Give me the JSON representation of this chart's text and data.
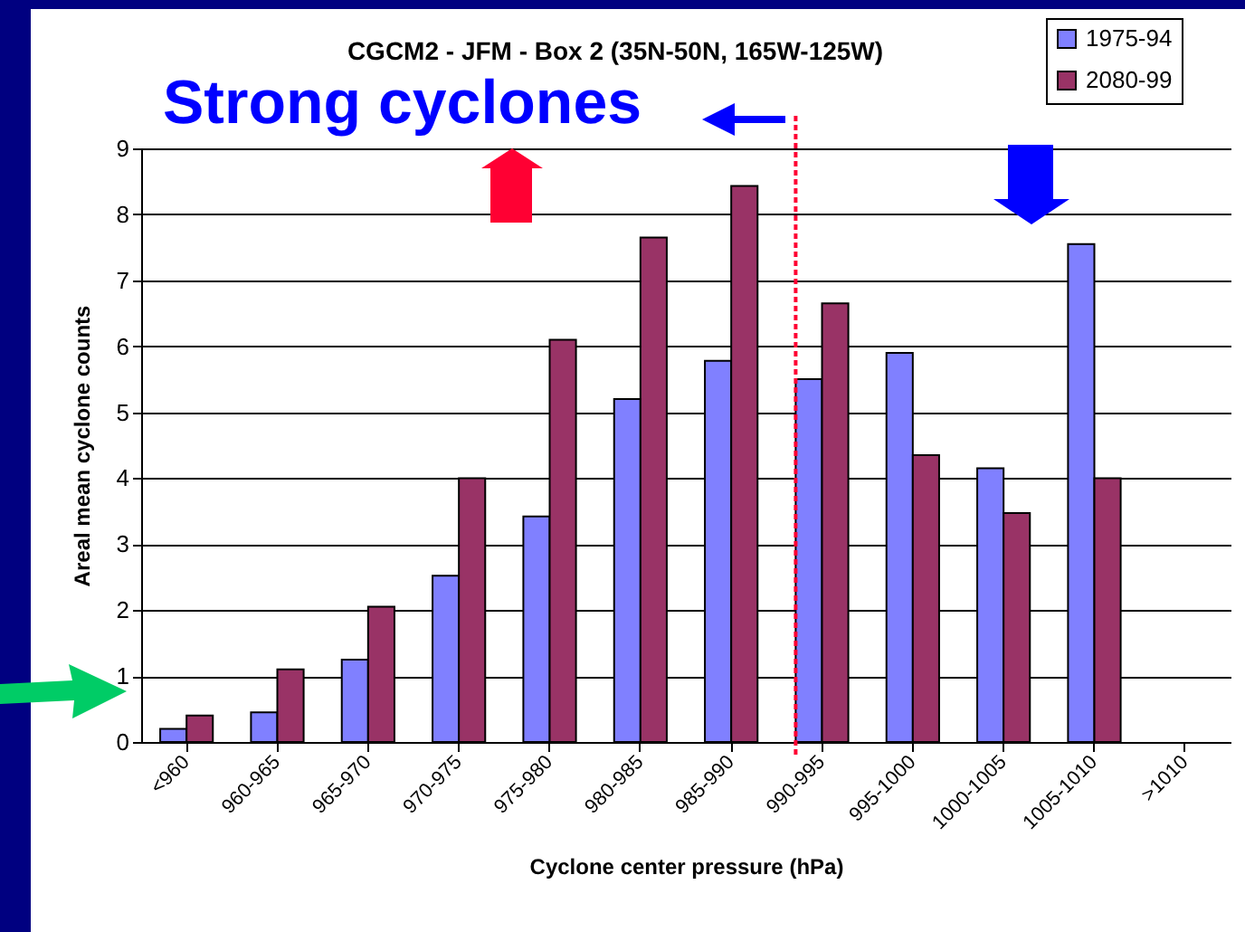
{
  "chart_data": {
    "type": "bar",
    "title": "CGCM2 - JFM - Box 2 (35N-50N, 165W-125W)",
    "xlabel": "Cyclone center pressure (hPa)",
    "ylabel": "Areal mean cyclone counts",
    "categories": [
      "<960",
      "960-965",
      "965-970",
      "970-975",
      "975-980",
      "980-985",
      "985-990",
      "990-995",
      "995-1000",
      "1000-1005",
      "1005-1010",
      ">1010"
    ],
    "series": [
      {
        "name": "1975-94",
        "color": "#8080ff",
        "values": [
          0.2,
          0.45,
          1.25,
          2.52,
          3.42,
          5.2,
          5.78,
          5.5,
          5.9,
          4.15,
          7.55,
          null
        ]
      },
      {
        "name": "2080-99",
        "color": "#993366",
        "values": [
          0.4,
          1.1,
          2.05,
          4.0,
          6.1,
          7.65,
          8.43,
          6.65,
          4.35,
          3.47,
          4.0,
          null
        ]
      }
    ],
    "ylim": [
      0,
      9
    ],
    "yticks": [
      0,
      1,
      2,
      3,
      4,
      5,
      6,
      7,
      8,
      9
    ],
    "grid": "y",
    "legend": "top right",
    "ref_lines": [
      {
        "axis": "x",
        "value": "990-995",
        "color": "#ff0033",
        "line_style": "dotted"
      }
    ],
    "annotations": [
      "Strong cyclones"
    ]
  }
}
